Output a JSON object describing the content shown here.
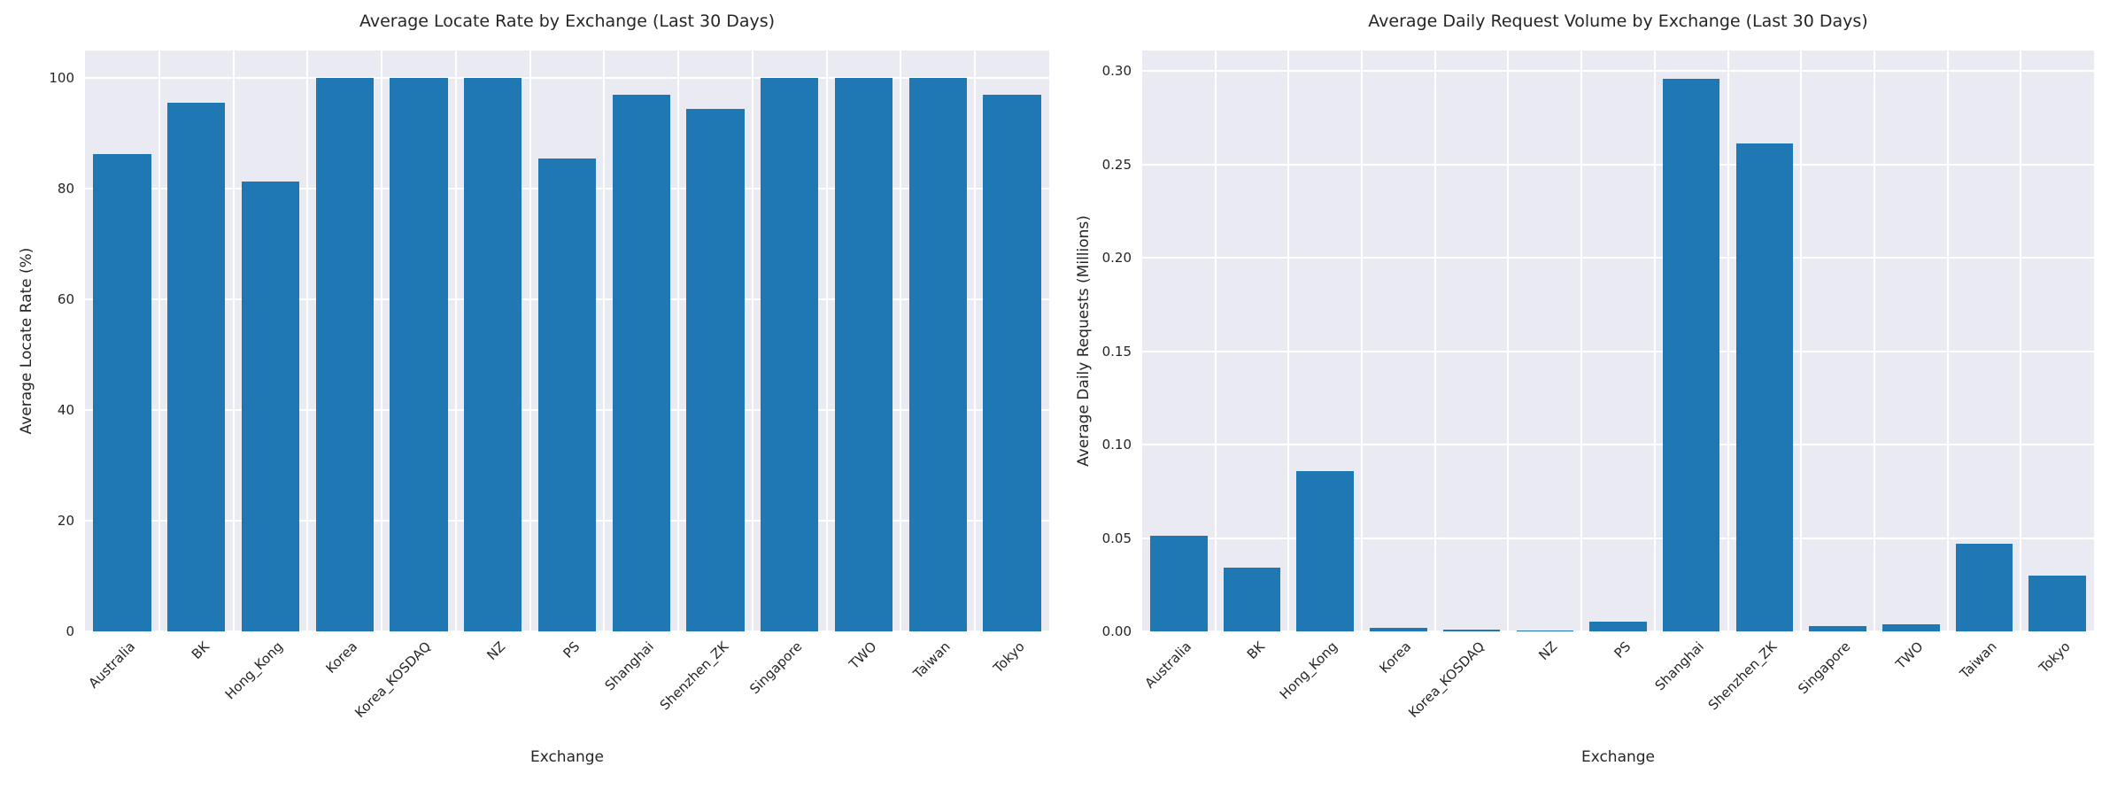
{
  "page": {
    "background": "#ffffff",
    "text_color": "#262626",
    "plot_background": "#eaeaf2",
    "gridline_color": "#ffffff"
  },
  "chart_data": [
    {
      "type": "bar",
      "title": "Average Locate Rate by Exchange (Last 30 Days)",
      "xlabel": "Exchange",
      "ylabel": "Average Locate Rate (%)",
      "categories": [
        "Australia",
        "BK",
        "Hong_Kong",
        "Korea",
        "Korea_KOSDAQ",
        "NZ",
        "PS",
        "Shanghai",
        "Shenzhen_ZK",
        "Singapore",
        "TWO",
        "Taiwan",
        "Tokyo"
      ],
      "values": [
        86.2,
        95.5,
        81.3,
        100,
        100,
        100,
        85.5,
        97.0,
        94.5,
        100,
        100,
        100,
        97.0
      ],
      "ylim": [
        0,
        105
      ],
      "yticks": [
        0,
        20,
        40,
        60,
        80,
        100
      ],
      "ytick_labels": [
        "0",
        "20",
        "40",
        "60",
        "80",
        "100"
      ],
      "grid": true,
      "legend": null,
      "bar_color": "#1f77b4",
      "xtick_rotation_deg": 45
    },
    {
      "type": "bar",
      "title": "Average Daily Request Volume by Exchange (Last 30 Days)",
      "xlabel": "Exchange",
      "ylabel": "Average Daily Requests (Millions)",
      "categories": [
        "Australia",
        "BK",
        "Hong_Kong",
        "Korea",
        "Korea_KOSDAQ",
        "NZ",
        "PS",
        "Shanghai",
        "Shenzhen_ZK",
        "Singapore",
        "TWO",
        "Taiwan",
        "Tokyo"
      ],
      "values": [
        0.051,
        0.034,
        0.086,
        0.002,
        0.001,
        0.0005,
        0.005,
        0.296,
        0.261,
        0.003,
        0.004,
        0.047,
        0.03
      ],
      "ylim": [
        0,
        0.311
      ],
      "yticks": [
        0,
        0.05,
        0.1,
        0.15,
        0.2,
        0.25,
        0.3
      ],
      "ytick_labels": [
        "0.00",
        "0.05",
        "0.10",
        "0.15",
        "0.20",
        "0.25",
        "0.30"
      ],
      "grid": true,
      "legend": null,
      "bar_color": "#1f77b4",
      "xtick_rotation_deg": 45
    }
  ]
}
